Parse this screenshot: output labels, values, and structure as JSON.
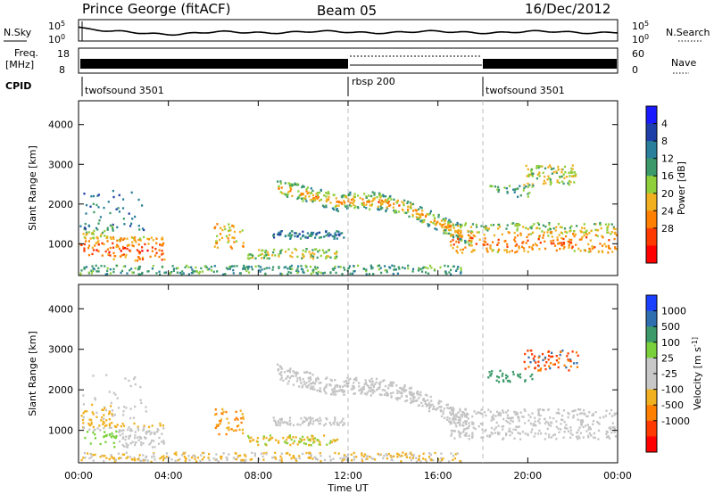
{
  "header": {
    "title": "Prince George (fitACF)",
    "beam": "Beam 05",
    "date": "16/Dec/2012"
  },
  "strip_labels": {
    "nsky": "N.Sky",
    "nsky_ticks": [
      "10^5",
      "10^0"
    ],
    "freq_l1": "Freq.",
    "freq_l2": "[MHz]",
    "freq_ticks": [
      "18",
      "8"
    ],
    "cpid": "CPID",
    "nsearch": "N.Search",
    "nsearch_ticks": [
      "10^5",
      "10^0"
    ],
    "nave": "Nave",
    "nave_ticks": [
      "60",
      "0"
    ]
  },
  "cpid_segments": [
    {
      "label": "twofsound 3501",
      "start_hour": 0
    },
    {
      "label": "rbsp 200",
      "start_hour": 12
    },
    {
      "label": "twofsound 3501",
      "start_hour": 18
    }
  ],
  "chart_data": [
    {
      "type": "heatmap",
      "title": "",
      "xlabel": "Time UT",
      "ylabel": "Slant Range [km]",
      "xlim": [
        0,
        24
      ],
      "ylim": [
        200,
        4600
      ],
      "x_tick_labels": [
        "00:00",
        "04:00",
        "08:00",
        "12:00",
        "16:00",
        "20:00",
        "00:00"
      ],
      "y_tick_labels": [
        "1000",
        "2000",
        "3000",
        "4000"
      ],
      "y_tick_values": [
        1000,
        2000,
        3000,
        4000
      ],
      "colorbar": {
        "label": "Power [dB]",
        "ticks": [
          "4",
          "8",
          "12",
          "16",
          "20",
          "24",
          "28"
        ],
        "colors": [
          "#1a1aff",
          "#1f3fa8",
          "#2a7f9a",
          "#3c9a6a",
          "#8fcf3a",
          "#f0b020",
          "#ff7f00",
          "#ff3a00",
          "#ff0000"
        ]
      },
      "features": [
        {
          "name": "near-range echoes",
          "t_start": 0.0,
          "t_end": 3.8,
          "range_center": 900,
          "range_width": 300,
          "level": "high"
        },
        {
          "name": "E-region patch",
          "t_start": 6.0,
          "t_end": 7.3,
          "range_center": 1200,
          "range_width": 300,
          "level": "medium"
        },
        {
          "name": "mid-range band",
          "t_start": 8.6,
          "t_end": 11.8,
          "range_center": 1200,
          "range_width": 120,
          "level": "low"
        },
        {
          "name": "descending band",
          "t_start": 8.8,
          "t_end": 17.5,
          "range_center": 2100,
          "range_width": 250,
          "level": "medium"
        },
        {
          "name": "late near-range echoes",
          "t_start": 16.5,
          "t_end": 24.0,
          "range_center": 1100,
          "range_width": 350,
          "level": "high"
        },
        {
          "name": "far-range patch",
          "t_start": 19.8,
          "t_end": 22.2,
          "range_center": 2700,
          "range_width": 250,
          "level": "medium"
        }
      ]
    },
    {
      "type": "heatmap",
      "title": "",
      "xlabel": "Time UT",
      "ylabel": "Slant Range [km]",
      "xlim": [
        0,
        24
      ],
      "ylim": [
        200,
        4600
      ],
      "x_tick_labels": [
        "00:00",
        "04:00",
        "08:00",
        "12:00",
        "16:00",
        "20:00",
        "00:00"
      ],
      "y_tick_labels": [
        "1000",
        "2000",
        "3000",
        "4000"
      ],
      "y_tick_values": [
        1000,
        2000,
        3000,
        4000
      ],
      "colorbar": {
        "label": "Velocity [m s^-1]",
        "ticks": [
          "1000",
          "500",
          "100",
          "25",
          "-25",
          "-100",
          "-500",
          "-1000"
        ],
        "colors": [
          "#1a3fff",
          "#2f6faf",
          "#3c9a6a",
          "#7ad03a",
          "#c8c8c8",
          "#c8c8c8",
          "#f0b020",
          "#ff7f00",
          "#ff3a00",
          "#ff0000"
        ]
      }
    }
  ]
}
